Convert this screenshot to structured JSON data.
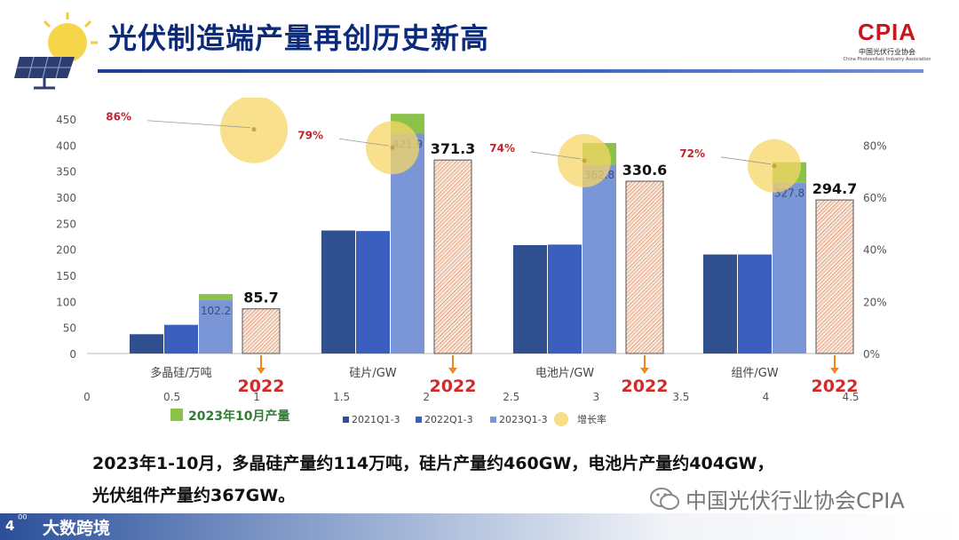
{
  "header": {
    "title": "光伏制造端产量再创历史新高",
    "logo_text": "CPIA",
    "logo_sub_cn": "中国光伏行业协会",
    "logo_sub_en": "China Photovoltaic Industry Association"
  },
  "chart_data": {
    "type": "bar",
    "categories": [
      "多晶硅/万吨",
      "硅片/GW",
      "电池片/GW",
      "组件/GW"
    ],
    "series": [
      {
        "name": "2021Q1-3",
        "values": [
          37,
          236,
          208,
          190
        ],
        "color": "#2f4f8f"
      },
      {
        "name": "2022Q1-3",
        "values": [
          55,
          235,
          209,
          190
        ],
        "color": "#3a5fbe"
      },
      {
        "name": "2023Q1-3",
        "values": [
          102.2,
          421.9,
          362.8,
          327.8
        ],
        "color": "#7b96d6"
      },
      {
        "name": "2023年10月产量",
        "values": [
          11.8,
          38.1,
          41.2,
          39.2
        ],
        "color": "#8bc34a"
      }
    ],
    "value_labels_2023": [
      "102.2",
      "421.9",
      "362.8",
      "327.8"
    ],
    "full_year_2022": {
      "values": [
        85.7,
        371.3,
        330.6,
        294.7
      ],
      "labels": [
        "85.7",
        "371.3",
        "330.6",
        "294.7"
      ],
      "tag": "2022"
    },
    "growth_rate": {
      "name": "增长率",
      "values": [
        86,
        79,
        74,
        72
      ],
      "labels": [
        "86%",
        "79%",
        "74%",
        "72%"
      ]
    },
    "y_left": {
      "min": 0,
      "max": 450,
      "ticks": [
        "0",
        "50",
        "100",
        "150",
        "200",
        "250",
        "300",
        "350",
        "400",
        "450"
      ]
    },
    "y_right": {
      "min": 0,
      "max": 90,
      "ticks": [
        "0%",
        "20%",
        "40%",
        "60%",
        "80%"
      ]
    },
    "x_bottom": {
      "min": 0,
      "max": 4.5,
      "ticks": [
        "0",
        "0.5",
        "1",
        "1.5",
        "2",
        "2.5",
        "3",
        "3.5",
        "4",
        "4.5"
      ]
    },
    "legend": [
      "2021Q1-3",
      "2022Q1-3",
      "2023Q1-3",
      "增长率"
    ],
    "legend_oct": "2023年10月产量",
    "grid": false
  },
  "caption": {
    "line1": "2023年1-10月，多晶硅产量约114万吨，硅片产量约460GW，电池片产量约404GW，",
    "line2": "光伏组件产量约367GW。"
  },
  "footer": {
    "page": "4",
    "brand": "大数跨境",
    "watermark": "中国光伏行业协会CPIA"
  }
}
